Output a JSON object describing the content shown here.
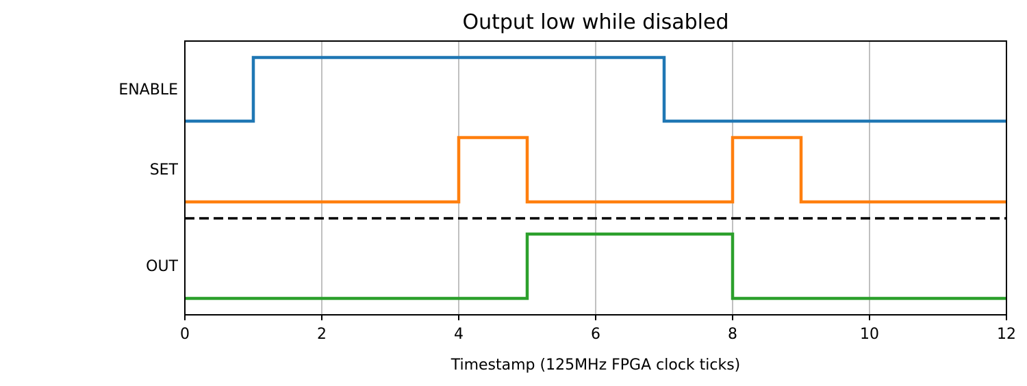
{
  "chart_data": {
    "type": "line",
    "subtype": "digital-timing-diagram",
    "title": "Output low while disabled",
    "xlabel": "Timestamp (125MHz FPGA clock ticks)",
    "ylabel": "",
    "xlim": [
      0,
      12
    ],
    "x_ticks": [
      0,
      2,
      4,
      6,
      8,
      10,
      12
    ],
    "x_tick_labels": [
      "0",
      "2",
      "4",
      "6",
      "8",
      "10",
      "12"
    ],
    "grid": "vertical",
    "legend": "none",
    "separator": {
      "style": "dashed",
      "color": "#000000",
      "between": [
        "SET",
        "OUT"
      ]
    },
    "series": [
      {
        "name": "ENABLE",
        "color": "#1f77b4",
        "x": [
          0,
          1,
          7,
          12
        ],
        "values": [
          0,
          1,
          0,
          0
        ]
      },
      {
        "name": "SET",
        "color": "#ff7f0e",
        "x": [
          0,
          4,
          5,
          8,
          9,
          12
        ],
        "values": [
          0,
          1,
          0,
          1,
          0,
          0
        ]
      },
      {
        "name": "OUT",
        "color": "#2ca02c",
        "x": [
          0,
          5,
          8,
          12
        ],
        "values": [
          0,
          1,
          0,
          0
        ]
      }
    ]
  }
}
